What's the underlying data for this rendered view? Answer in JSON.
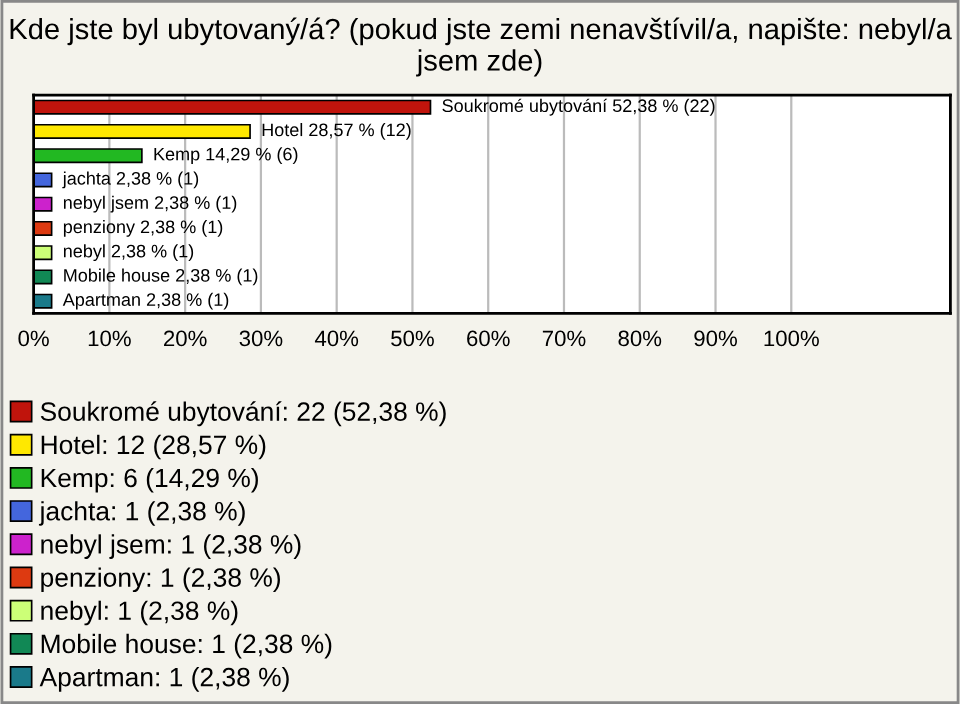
{
  "chart_data": {
    "type": "bar",
    "orientation": "horizontal",
    "title": "Kde jste byl ubytovaný/á? (pokud jste zemi nenavštívil/a, napište: nebyl/a jsem zde)",
    "categories": [
      null,
      null,
      null,
      null,
      null,
      null,
      null,
      null,
      null
    ],
    "series": [
      {
        "name": "Soukromé ubytování: 22 (52,38 %)",
        "color": "#c0140c",
        "values": [
          52.38,
          null,
          null,
          null,
          null,
          null,
          null,
          null,
          null
        ],
        "value_labels": [
          "Soukromé ubytování 52,38 % (22)",
          null,
          null,
          null,
          null,
          null,
          null,
          null,
          null
        ]
      },
      {
        "name": "Hotel: 12 (28,57 %)",
        "color": "#ffe800",
        "values": [
          null,
          28.57,
          null,
          null,
          null,
          null,
          null,
          null,
          null
        ],
        "value_labels": [
          null,
          "Hotel 28,57 % (12)",
          null,
          null,
          null,
          null,
          null,
          null,
          null
        ]
      },
      {
        "name": "Kemp: 6 (14,29 %)",
        "color": "#22b822",
        "values": [
          null,
          null,
          14.29,
          null,
          null,
          null,
          null,
          null,
          null
        ],
        "value_labels": [
          null,
          null,
          "Kemp 14,29 % (6)",
          null,
          null,
          null,
          null,
          null,
          null
        ]
      },
      {
        "name": "jachta: 1 (2,38 %)",
        "color": "#4466dd",
        "values": [
          null,
          null,
          null,
          2.38,
          null,
          null,
          null,
          null,
          null
        ],
        "value_labels": [
          null,
          null,
          null,
          "jachta 2,38 % (1)",
          null,
          null,
          null,
          null,
          null
        ]
      },
      {
        "name": "nebyl jsem: 1 (2,38 %)",
        "color": "#cc22cc",
        "values": [
          null,
          null,
          null,
          null,
          2.38,
          null,
          null,
          null,
          null
        ],
        "value_labels": [
          null,
          null,
          null,
          null,
          "nebyl jsem 2,38 % (1)",
          null,
          null,
          null,
          null
        ]
      },
      {
        "name": "penziony: 1 (2,38 %)",
        "color": "#dd3a11",
        "values": [
          null,
          null,
          null,
          null,
          null,
          2.38,
          null,
          null,
          null
        ],
        "value_labels": [
          null,
          null,
          null,
          null,
          null,
          "penziony 2,38 % (1)",
          null,
          null,
          null
        ]
      },
      {
        "name": "nebyl: 1 (2,38 %)",
        "color": "#ccff77",
        "values": [
          null,
          null,
          null,
          null,
          null,
          null,
          2.38,
          null,
          null
        ],
        "value_labels": [
          null,
          null,
          null,
          null,
          null,
          null,
          "nebyl 2,38 % (1)",
          null,
          null
        ]
      },
      {
        "name": "Mobile house: 1 (2,38 %)",
        "color": "#118855",
        "values": [
          null,
          null,
          null,
          null,
          null,
          null,
          null,
          2.38,
          null
        ],
        "value_labels": [
          null,
          null,
          null,
          null,
          null,
          null,
          null,
          "Mobile house 2,38 % (1)",
          null
        ]
      },
      {
        "name": "Apartman: 1 (2,38 %)",
        "color": "#1a7a8a",
        "values": [
          null,
          null,
          null,
          null,
          null,
          null,
          null,
          null,
          2.38
        ],
        "value_labels": [
          null,
          null,
          null,
          null,
          null,
          null,
          null,
          null,
          "Apartman 2,38 % (1)"
        ]
      }
    ],
    "xlim": [
      0,
      121
    ],
    "xticks": [
      {
        "value": 0,
        "label": "0%"
      },
      {
        "value": 10,
        "label": "10%"
      },
      {
        "value": 20,
        "label": "20%"
      },
      {
        "value": 30,
        "label": "30%"
      },
      {
        "value": 40,
        "label": "40%"
      },
      {
        "value": 50,
        "label": "50%"
      },
      {
        "value": 60,
        "label": "60%"
      },
      {
        "value": 70,
        "label": "70%"
      },
      {
        "value": 80,
        "label": "80%"
      },
      {
        "value": 90,
        "label": "90%"
      },
      {
        "value": 100,
        "label": "100%"
      }
    ],
    "grid": "x",
    "legend": "bottom",
    "tick_labels": "x"
  }
}
